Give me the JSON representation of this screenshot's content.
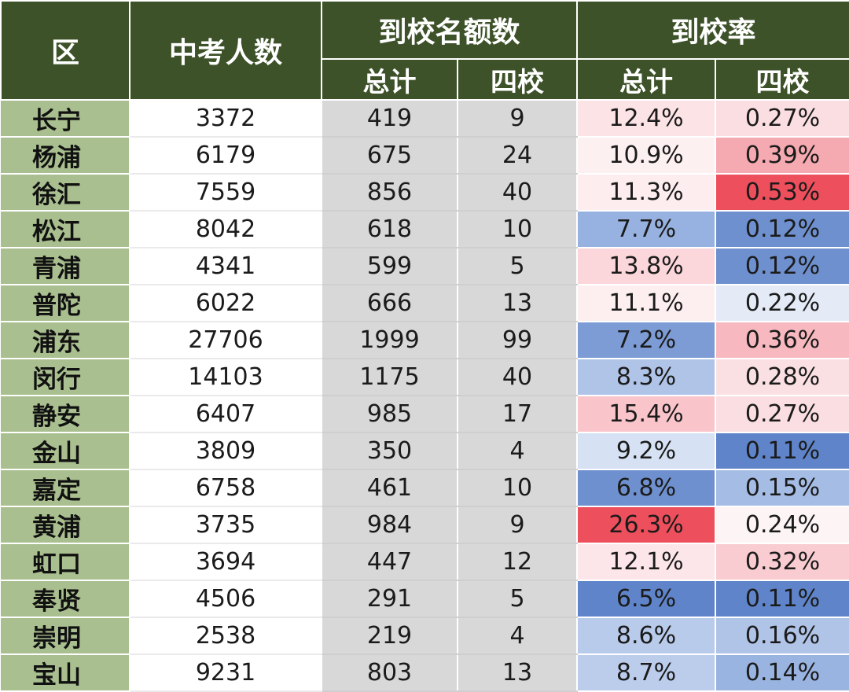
{
  "headers": {
    "district": "区",
    "exam_takers": "中考人数",
    "quota_group": "到校名额数",
    "rate_group": "到校率",
    "total": "总计",
    "four_schools": "四校"
  },
  "rows": [
    {
      "district": "长宁",
      "exam": "3372",
      "quota_total": "419",
      "quota_four": "9",
      "rate_total": "12.4%",
      "rate_four": "0.27%",
      "rate_total_color": "#fce3e6",
      "rate_four_color": "#fbdee2"
    },
    {
      "district": "杨浦",
      "exam": "6179",
      "quota_total": "675",
      "quota_four": "24",
      "rate_total": "10.9%",
      "rate_four": "0.39%",
      "rate_total_color": "#fdf0f1",
      "rate_four_color": "#f5a9b0"
    },
    {
      "district": "徐汇",
      "exam": "7559",
      "quota_total": "856",
      "quota_four": "40",
      "rate_total": "11.3%",
      "rate_four": "0.53%",
      "rate_total_color": "#fdedef",
      "rate_four_color": "#ee4f5c"
    },
    {
      "district": "松江",
      "exam": "8042",
      "quota_total": "618",
      "quota_four": "10",
      "rate_total": "7.7%",
      "rate_four": "0.12%",
      "rate_total_color": "#97b2e0",
      "rate_four_color": "#6f90cf"
    },
    {
      "district": "青浦",
      "exam": "4341",
      "quota_total": "599",
      "quota_four": "5",
      "rate_total": "13.8%",
      "rate_four": "0.12%",
      "rate_total_color": "#fbd6da",
      "rate_four_color": "#6f90cf"
    },
    {
      "district": "普陀",
      "exam": "6022",
      "quota_total": "666",
      "quota_four": "13",
      "rate_total": "11.1%",
      "rate_four": "0.22%",
      "rate_total_color": "#fdeff0",
      "rate_four_color": "#e4ebf7"
    },
    {
      "district": "浦东",
      "exam": "27706",
      "quota_total": "1999",
      "quota_four": "99",
      "rate_total": "7.2%",
      "rate_four": "0.36%",
      "rate_total_color": "#7d9bd4",
      "rate_four_color": "#f7b9bf"
    },
    {
      "district": "闵行",
      "exam": "14103",
      "quota_total": "1175",
      "quota_four": "40",
      "rate_total": "8.3%",
      "rate_four": "0.28%",
      "rate_total_color": "#b0c4e8",
      "rate_four_color": "#fbe0e3"
    },
    {
      "district": "静安",
      "exam": "6407",
      "quota_total": "985",
      "quota_four": "17",
      "rate_total": "15.4%",
      "rate_four": "0.27%",
      "rate_total_color": "#f9c5cb",
      "rate_four_color": "#fbdee2"
    },
    {
      "district": "金山",
      "exam": "3809",
      "quota_total": "350",
      "quota_four": "4",
      "rate_total": "9.2%",
      "rate_four": "0.11%",
      "rate_total_color": "#d6e1f3",
      "rate_four_color": "#5f84c9"
    },
    {
      "district": "嘉定",
      "exam": "6758",
      "quota_total": "461",
      "quota_four": "10",
      "rate_total": "6.8%",
      "rate_four": "0.15%",
      "rate_total_color": "#6f90cf",
      "rate_four_color": "#a5bce5"
    },
    {
      "district": "黄浦",
      "exam": "3735",
      "quota_total": "984",
      "quota_four": "9",
      "rate_total": "26.3%",
      "rate_four": "0.24%",
      "rate_total_color": "#ee4f5c",
      "rate_four_color": "#fdf4f5"
    },
    {
      "district": "虹口",
      "exam": "3694",
      "quota_total": "447",
      "quota_four": "12",
      "rate_total": "12.1%",
      "rate_four": "0.32%",
      "rate_total_color": "#fde6e9",
      "rate_four_color": "#f9ccd1"
    },
    {
      "district": "奉贤",
      "exam": "4506",
      "quota_total": "291",
      "quota_four": "5",
      "rate_total": "6.5%",
      "rate_four": "0.11%",
      "rate_total_color": "#5f84c9",
      "rate_four_color": "#5f84c9"
    },
    {
      "district": "崇明",
      "exam": "2538",
      "quota_total": "219",
      "quota_four": "4",
      "rate_total": "8.6%",
      "rate_four": "0.16%",
      "rate_total_color": "#b9cbeb",
      "rate_four_color": "#b0c4e8"
    },
    {
      "district": "宝山",
      "exam": "9231",
      "quota_total": "803",
      "quota_four": "13",
      "rate_total": "8.7%",
      "rate_four": "0.14%",
      "rate_total_color": "#bccdec",
      "rate_four_color": "#9ab4e1"
    }
  ]
}
